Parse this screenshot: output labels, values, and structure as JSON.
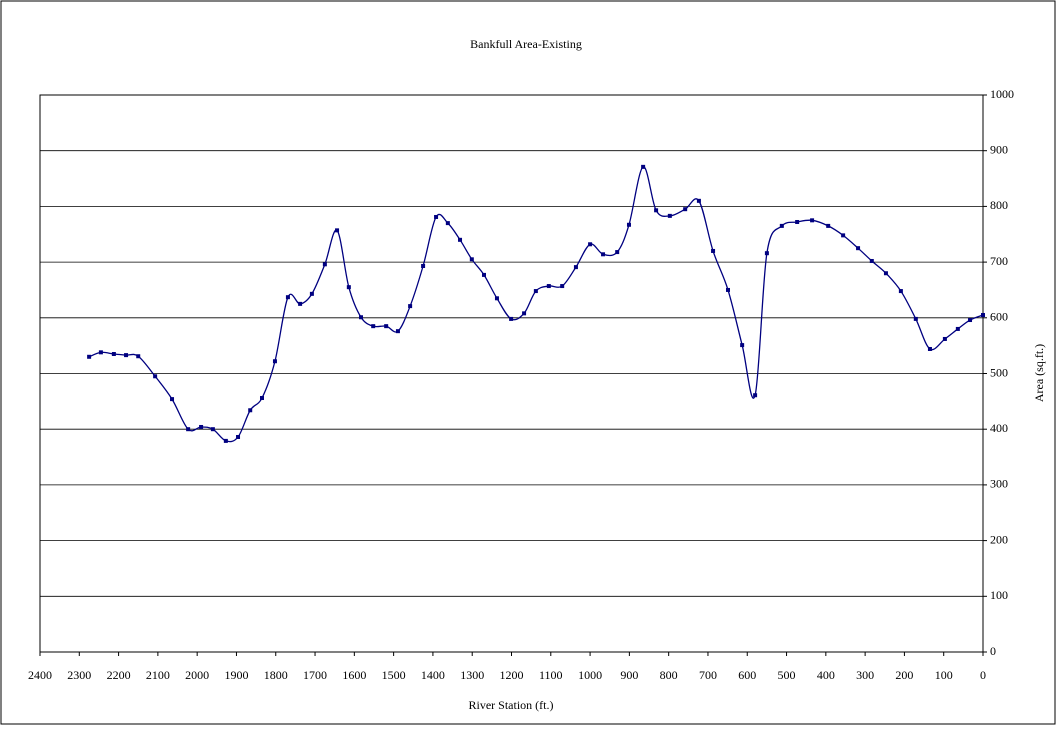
{
  "chart_data": {
    "type": "line",
    "title": "Bankfull Area-Existing",
    "xlabel": "River Station (ft.)",
    "ylabel": "Area (sq.ft.)",
    "color": "#000080",
    "y_axis_side": "right",
    "grid": true,
    "xlim": [
      2400,
      0
    ],
    "xticks": [
      2400,
      2300,
      2200,
      2100,
      2000,
      1900,
      1800,
      1700,
      1600,
      1500,
      1400,
      1300,
      1200,
      1100,
      1000,
      900,
      800,
      700,
      600,
      500,
      400,
      300,
      200,
      100,
      0
    ],
    "ylim": [
      0,
      1000
    ],
    "yticks": [
      0,
      100,
      200,
      300,
      400,
      500,
      600,
      700,
      800,
      900,
      1000
    ],
    "x": [
      2275,
      2245,
      2212,
      2181,
      2150,
      2107,
      2064,
      2023,
      1990,
      1960,
      1927,
      1896,
      1865,
      1835,
      1802,
      1769,
      1738,
      1708,
      1675,
      1644,
      1614,
      1583,
      1552,
      1519,
      1489,
      1458,
      1425,
      1392,
      1362,
      1331,
      1301,
      1270,
      1237,
      1201,
      1168,
      1138,
      1105,
      1071,
      1036,
      1000,
      967,
      931,
      901,
      865,
      832,
      797,
      758,
      723,
      687,
      649,
      613,
      580,
      550,
      512,
      473,
      435,
      394,
      356,
      318,
      283,
      247,
      209,
      171,
      135,
      97,
      64,
      33,
      0
    ],
    "values": [
      530,
      538,
      535,
      533,
      531,
      495,
      454,
      400,
      404,
      400,
      379,
      386,
      434,
      456,
      522,
      637,
      625,
      643,
      696,
      757,
      655,
      601,
      585,
      585,
      576,
      621,
      693,
      781,
      770,
      740,
      705,
      677,
      635,
      598,
      608,
      648,
      657,
      657,
      691,
      732,
      714,
      718,
      767,
      871,
      793,
      783,
      795,
      810,
      720,
      650,
      551,
      461,
      716,
      765,
      772,
      775,
      765,
      748,
      725,
      702,
      680,
      648,
      598,
      544,
      562,
      580,
      596,
      605
    ]
  }
}
